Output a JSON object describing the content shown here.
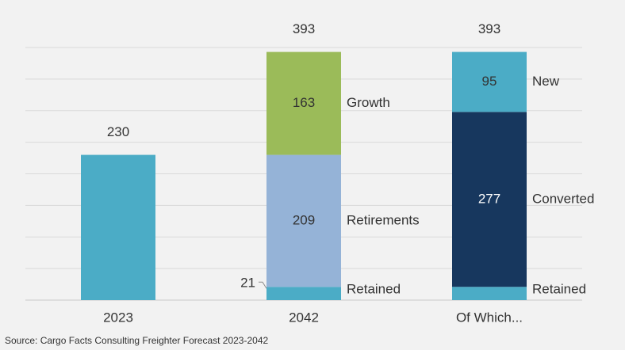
{
  "chart_data": {
    "type": "bar",
    "stacked": true,
    "categories": [
      "2023",
      "2042",
      "Of Which..."
    ],
    "ylim": [
      0,
      400
    ],
    "grid": true,
    "series": [
      {
        "name": "",
        "values": [
          230,
          0,
          0
        ],
        "color": "#4bacc6"
      },
      {
        "name": "Retained",
        "values": [
          0,
          21,
          21
        ],
        "color": "#4bacc6"
      },
      {
        "name": "Retirements",
        "values": [
          0,
          209,
          0
        ],
        "color": "#95b3d7"
      },
      {
        "name": "Growth",
        "values": [
          0,
          163,
          0
        ],
        "color": "#9bbb59"
      },
      {
        "name": "Converted",
        "values": [
          0,
          0,
          277
        ],
        "color": "#17375e"
      },
      {
        "name": "New",
        "values": [
          0,
          0,
          95
        ],
        "color": "#4bacc6"
      }
    ],
    "totals": [
      230,
      393,
      393
    ],
    "data_labels": [
      {
        "category": "2042",
        "series": "Growth",
        "text": "163"
      },
      {
        "category": "2042",
        "series": "Retirements",
        "text": "209"
      },
      {
        "category": "2042",
        "series": "Retained",
        "text": "21"
      },
      {
        "category": "Of Which...",
        "series": "New",
        "text": "95"
      },
      {
        "category": "Of Which...",
        "series": "Converted",
        "text": "277"
      }
    ],
    "source": "Source: Cargo Facts Consulting Freighter Forecast 2023-2042"
  }
}
